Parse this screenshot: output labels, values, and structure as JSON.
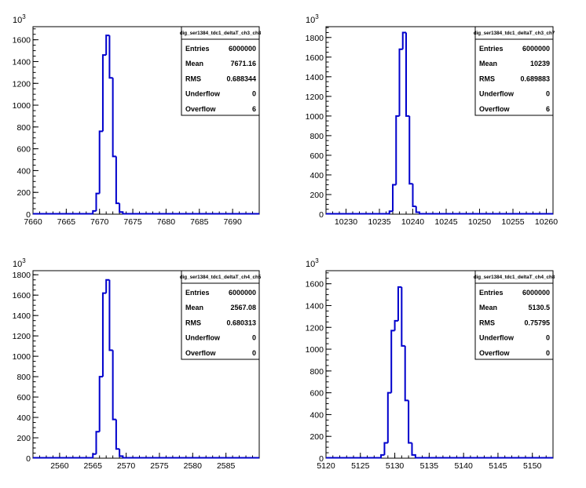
{
  "chart_data": [
    {
      "type": "histogram",
      "title": "",
      "stats_box": {
        "name": "dig_ser1384_tdc1_deltaT_ch3_ch8",
        "entries_label": "Entries",
        "entries": "6000000",
        "mean_label": "Mean",
        "mean": "7671.16",
        "rms_label": "RMS",
        "rms": "0.688344",
        "underflow_label": "Underflow",
        "underflow": "0",
        "overflow_label": "Overflow",
        "overflow": "6"
      },
      "xlim": [
        7660,
        7694
      ],
      "x_ticks": [
        "7660",
        "7665",
        "7670",
        "7675",
        "7680",
        "7685",
        "7690"
      ],
      "ylim": [
        0,
        1.72
      ],
      "y_ticks": [
        "0",
        "200",
        "400",
        "600",
        "800",
        "1000",
        "1200",
        "1400",
        "1600"
      ],
      "y_multiplier": "10",
      "y_multiplier_exp": "3",
      "bin_width": 0.5,
      "bins": [
        {
          "x": 7669.0,
          "y": 0.03
        },
        {
          "x": 7669.5,
          "y": 0.19
        },
        {
          "x": 7670.0,
          "y": 0.76
        },
        {
          "x": 7670.5,
          "y": 1.46
        },
        {
          "x": 7671.0,
          "y": 1.64
        },
        {
          "x": 7671.5,
          "y": 1.25
        },
        {
          "x": 7672.0,
          "y": 0.53
        },
        {
          "x": 7672.5,
          "y": 0.1
        },
        {
          "x": 7673.0,
          "y": 0.02
        }
      ]
    },
    {
      "type": "histogram",
      "title": "",
      "stats_box": {
        "name": "dig_ser1384_tdc1_deltaT_ch3_ch7",
        "entries_label": "Entries",
        "entries": "6000000",
        "mean_label": "Mean",
        "mean": "10239",
        "rms_label": "RMS",
        "rms": "0.689883",
        "underflow_label": "Underflow",
        "underflow": "0",
        "overflow_label": "Overflow",
        "overflow": "6"
      },
      "xlim": [
        10227,
        10261
      ],
      "x_ticks": [
        "10230",
        "10235",
        "10240",
        "10245",
        "10250",
        "10255",
        "10260"
      ],
      "ylim": [
        0,
        1.91
      ],
      "y_ticks": [
        "0",
        "200",
        "400",
        "600",
        "800",
        "1000",
        "1200",
        "1400",
        "1600",
        "1800"
      ],
      "y_multiplier": "10",
      "y_multiplier_exp": "3",
      "bin_width": 0.5,
      "bins": [
        {
          "x": 10236.5,
          "y": 0.03
        },
        {
          "x": 10237.0,
          "y": 0.3
        },
        {
          "x": 10237.5,
          "y": 1.0
        },
        {
          "x": 10238.0,
          "y": 1.68
        },
        {
          "x": 10238.5,
          "y": 1.85
        },
        {
          "x": 10239.0,
          "y": 1.0
        },
        {
          "x": 10239.5,
          "y": 0.31
        },
        {
          "x": 10240.0,
          "y": 0.08
        },
        {
          "x": 10240.5,
          "y": 0.02
        }
      ]
    },
    {
      "type": "histogram",
      "title": "",
      "stats_box": {
        "name": "dig_ser1384_tdc1_deltaT_ch4_ch5",
        "entries_label": "Entries",
        "entries": "6000000",
        "mean_label": "Mean",
        "mean": "2567.08",
        "rms_label": "RMS",
        "rms": "0.680313",
        "underflow_label": "Underflow",
        "underflow": "0",
        "overflow_label": "Overflow",
        "overflow": "0"
      },
      "xlim": [
        2556,
        2590
      ],
      "x_ticks": [
        "2560",
        "2565",
        "2570",
        "2575",
        "2580",
        "2585"
      ],
      "ylim": [
        0,
        1.84
      ],
      "y_ticks": [
        "0",
        "200",
        "400",
        "600",
        "800",
        "1000",
        "1200",
        "1400",
        "1600",
        "1800"
      ],
      "y_multiplier": "10",
      "y_multiplier_exp": "3",
      "bin_width": 0.5,
      "bins": [
        {
          "x": 2565.0,
          "y": 0.04
        },
        {
          "x": 2565.5,
          "y": 0.26
        },
        {
          "x": 2566.0,
          "y": 0.8
        },
        {
          "x": 2566.5,
          "y": 1.62
        },
        {
          "x": 2567.0,
          "y": 1.75
        },
        {
          "x": 2567.5,
          "y": 1.06
        },
        {
          "x": 2568.0,
          "y": 0.38
        },
        {
          "x": 2568.5,
          "y": 0.09
        },
        {
          "x": 2569.0,
          "y": 0.02
        }
      ]
    },
    {
      "type": "histogram",
      "title": "",
      "stats_box": {
        "name": "dig_ser1384_tdc1_deltaT_ch4_ch8",
        "entries_label": "Entries",
        "entries": "6000000",
        "mean_label": "Mean",
        "mean": "5130.5",
        "rms_label": "RMS",
        "rms": "0.75795",
        "underflow_label": "Underflow",
        "underflow": "0",
        "overflow_label": "Overflow",
        "overflow": "0"
      },
      "xlim": [
        5120,
        5153
      ],
      "x_ticks": [
        "5120",
        "5125",
        "5130",
        "5135",
        "5140",
        "5145",
        "5150"
      ],
      "ylim": [
        0,
        1.72
      ],
      "y_ticks": [
        "0",
        "200",
        "400",
        "600",
        "800",
        "1000",
        "1200",
        "1400",
        "1600"
      ],
      "y_multiplier": "10",
      "y_multiplier_exp": "3",
      "bin_width": 0.5,
      "bins": [
        {
          "x": 5128.0,
          "y": 0.03
        },
        {
          "x": 5128.5,
          "y": 0.14
        },
        {
          "x": 5129.0,
          "y": 0.6
        },
        {
          "x": 5129.5,
          "y": 1.17
        },
        {
          "x": 5130.0,
          "y": 1.26
        },
        {
          "x": 5130.5,
          "y": 1.57
        },
        {
          "x": 5131.0,
          "y": 1.03
        },
        {
          "x": 5131.5,
          "y": 0.53
        },
        {
          "x": 5132.0,
          "y": 0.14
        },
        {
          "x": 5132.5,
          "y": 0.03
        }
      ]
    }
  ],
  "colors": {
    "histogram_line": "#0000cc",
    "axis": "#000000",
    "background": "#ffffff"
  }
}
